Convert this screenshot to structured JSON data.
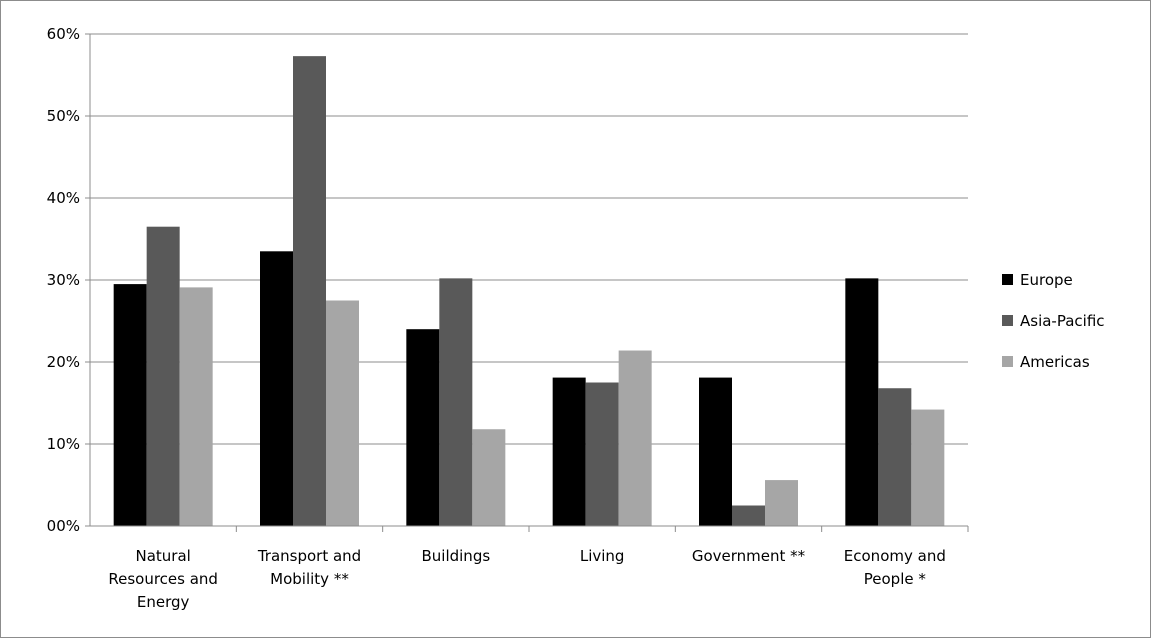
{
  "chart_data": {
    "type": "bar",
    "title": "",
    "xlabel": "",
    "ylabel": "",
    "ylim": [
      0,
      60
    ],
    "yticks": [
      0,
      10,
      20,
      30,
      40,
      50,
      60
    ],
    "ytick_labels": [
      "00%",
      "10%",
      "20%",
      "30%",
      "40%",
      "50%",
      "60%"
    ],
    "grid": true,
    "legend_position": "right",
    "categories": [
      [
        "Natural",
        "Resources and",
        "Energy"
      ],
      [
        "Transport and",
        "Mobility **"
      ],
      [
        "Buildings"
      ],
      [
        "Living"
      ],
      [
        "Government **"
      ],
      [
        "Economy and",
        "People *"
      ]
    ],
    "series": [
      {
        "name": "Europe",
        "color": "#000000",
        "values": [
          29.5,
          33.5,
          24,
          18.1,
          18.1,
          30.2
        ]
      },
      {
        "name": "Asia-Pacific",
        "color": "#595959",
        "values": [
          36.5,
          57.3,
          30.2,
          17.5,
          2.5,
          16.8
        ]
      },
      {
        "name": "Americas",
        "color": "#a6a6a6",
        "values": [
          29.1,
          27.5,
          11.8,
          21.4,
          5.6,
          14.2
        ]
      }
    ]
  }
}
